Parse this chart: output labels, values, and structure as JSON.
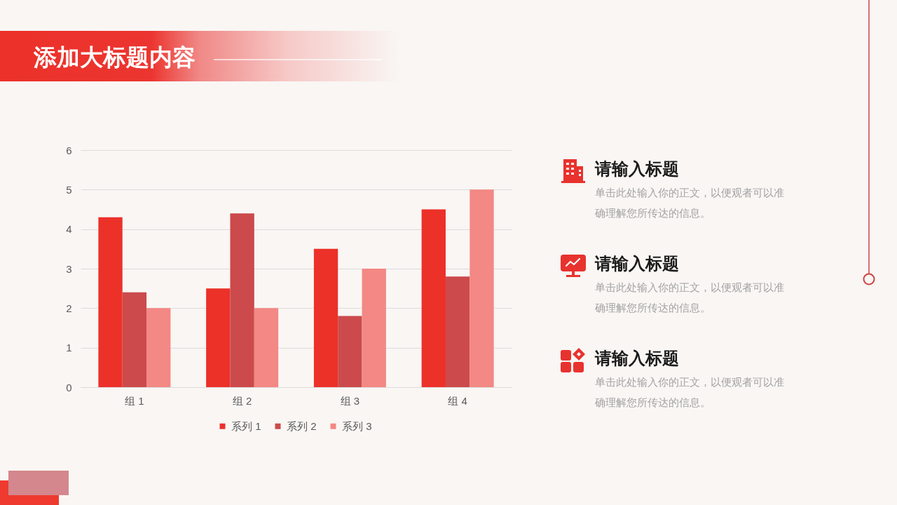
{
  "chart_data": [
    {
      "type": "bar",
      "title": "添加大标题内容",
      "categories": [
        "组 1",
        "组 2",
        "组 3",
        "组 4"
      ],
      "series": [
        {
          "name": "系列 1",
          "color": "#ec3129",
          "values": [
            4.3,
            2.5,
            3.5,
            4.5
          ]
        },
        {
          "name": "系列 2",
          "color": "#cc4a4b",
          "values": [
            2.4,
            4.4,
            1.8,
            2.8
          ]
        },
        {
          "name": "系列 3",
          "color": "#f38884",
          "values": [
            2,
            2,
            3,
            5
          ]
        }
      ],
      "ylim": [
        0,
        6
      ],
      "yticks": [
        0,
        1,
        2,
        3,
        4,
        5,
        6
      ],
      "grid": "y",
      "legend": "bottom"
    },
    {
      "type": "other",
      "annotations": [
        "请输入标题",
        "单击此处输入你的正文，以便观者可以准确理解您所传达的信息。",
        "请输入标题",
        "单击此处输入你的正文，以便观者可以准确理解您所传达的信息。",
        "请输入标题",
        "单击此处输入你的正文，以便观者可以准确理解您所传达的信息。"
      ]
    }
  ]
}
